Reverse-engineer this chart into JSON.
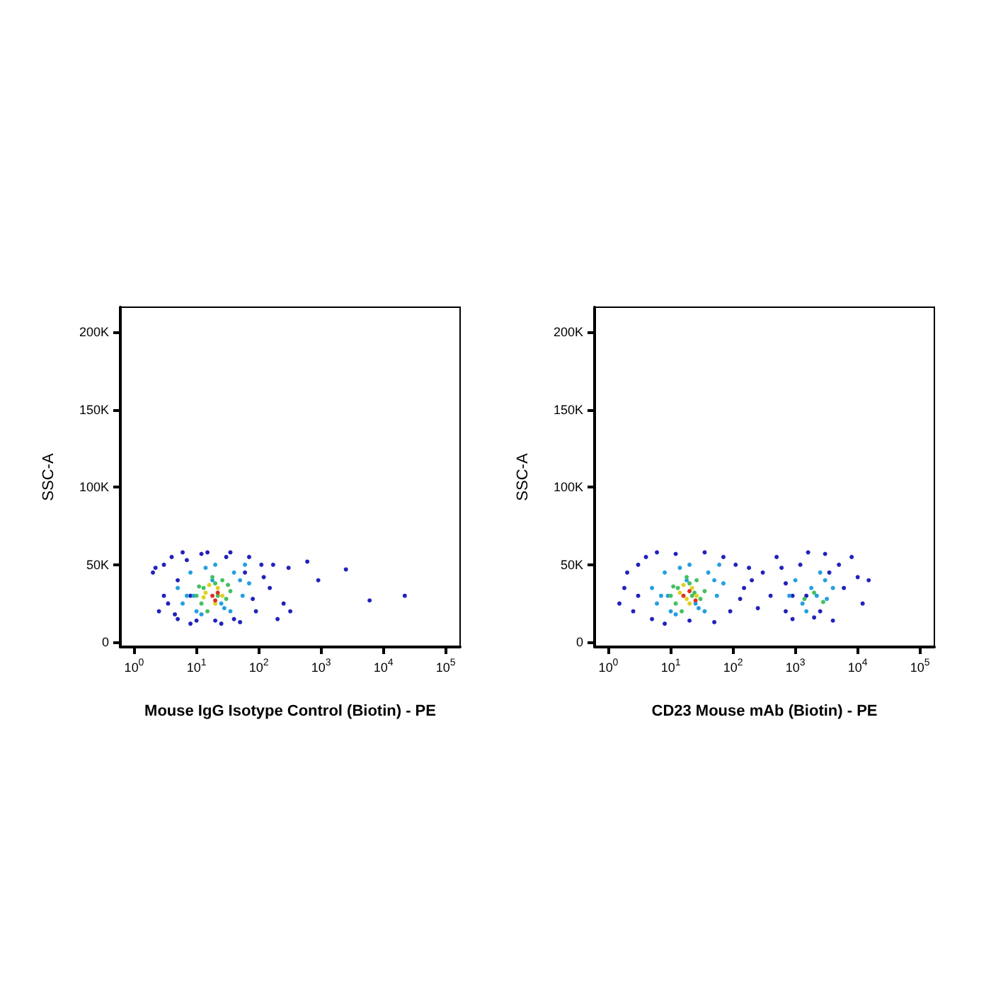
{
  "chart_data": [
    {
      "type": "scatter",
      "xlabel": "Mouse IgG Isotype Control (Biotin) - PE",
      "ylabel": "SSC-A",
      "log": "x",
      "grid": false,
      "marker": "circle",
      "xlim": [
        0.6,
        170000
      ],
      "xticks": [
        {
          "value": 1,
          "label": "10$^{0}$"
        },
        {
          "value": 10,
          "label": "10$^{1}$"
        },
        {
          "value": 100,
          "label": "10$^{2}$"
        },
        {
          "value": 1000,
          "label": "10$^{3}$"
        },
        {
          "value": 10000,
          "label": "10$^{4}$"
        },
        {
          "value": 100000,
          "label": "10$^{5}$"
        }
      ],
      "ylim": [
        -3000,
        216000
      ],
      "yticks": [
        0,
        {
          "value": 50000,
          "label": "50K"
        },
        {
          "value": 100000,
          "label": "100K"
        },
        {
          "value": 150000,
          "label": "150K"
        },
        {
          "value": 200000,
          "label": "200K"
        }
      ],
      "series": [
        {
          "color": "#2222bb",
          "x": [
            2,
            3,
            2.5,
            4,
            5,
            3,
            6,
            8,
            12,
            20,
            35,
            50,
            70,
            90,
            110,
            150,
            60,
            40,
            25,
            15,
            10,
            7,
            5,
            3.5,
            4.5,
            8,
            30,
            80,
            120,
            2.2,
            300,
            600,
            900,
            2500,
            6000,
            22000,
            320,
            250,
            170,
            200
          ],
          "values": [
            45000,
            30000,
            20000,
            55000,
            15000,
            50000,
            58000,
            12000,
            57000,
            14000,
            58000,
            13000,
            55000,
            20000,
            50000,
            35000,
            45000,
            15000,
            12000,
            58000,
            14000,
            53000,
            40000,
            25000,
            18000,
            30000,
            55000,
            28000,
            42000,
            48000,
            48000,
            52000,
            40000,
            47000,
            27000,
            30000,
            20000,
            25000,
            50000,
            15000
          ]
        },
        {
          "color": "#22a0e0",
          "x": [
            5,
            6,
            8,
            10,
            14,
            20,
            28,
            40,
            55,
            70,
            9,
            12,
            18,
            25,
            35,
            50,
            7,
            60
          ],
          "values": [
            35000,
            25000,
            45000,
            20000,
            48000,
            50000,
            22000,
            45000,
            30000,
            38000,
            30000,
            18000,
            40000,
            25000,
            20000,
            40000,
            30000,
            50000
          ]
        },
        {
          "color": "#44c060",
          "x": [
            10,
            13,
            11,
            20,
            32,
            30,
            12,
            18,
            26,
            35,
            15,
            22
          ],
          "values": [
            30000,
            35000,
            36000,
            38000,
            37000,
            28000,
            25000,
            42000,
            40000,
            33000,
            20000,
            30000
          ]
        },
        {
          "color": "#e0d020",
          "x": [
            14,
            13,
            22,
            26,
            16,
            20
          ],
          "values": [
            32000,
            29000,
            35000,
            30000,
            37000,
            25000
          ]
        },
        {
          "color": "#e03020",
          "x": [
            18,
            22,
            20
          ],
          "values": [
            30000,
            32000,
            27000
          ]
        }
      ]
    },
    {
      "type": "scatter",
      "xlabel": "CD23 Mouse mAb (Biotin) - PE",
      "ylabel": "SSC-A",
      "log": "x",
      "grid": false,
      "marker": "circle",
      "xlim": [
        0.6,
        170000
      ],
      "xticks": [
        {
          "value": 1,
          "label": "10$^{0}$"
        },
        {
          "value": 10,
          "label": "10$^{1}$"
        },
        {
          "value": 100,
          "label": "10$^{2}$"
        },
        {
          "value": 1000,
          "label": "10$^{3}$"
        },
        {
          "value": 10000,
          "label": "10$^{4}$"
        },
        {
          "value": 100000,
          "label": "10$^{5}$"
        }
      ],
      "ylim": [
        -3000,
        216000
      ],
      "yticks": [
        0,
        {
          "value": 50000,
          "label": "50K"
        },
        {
          "value": 100000,
          "label": "100K"
        },
        {
          "value": 150000,
          "label": "150K"
        },
        {
          "value": 200000,
          "label": "200K"
        }
      ],
      "series": [
        {
          "color": "#2222bb",
          "x": [
            2,
            3,
            2.5,
            4,
            5,
            3,
            6,
            8,
            12,
            20,
            35,
            50,
            70,
            90,
            110,
            150,
            200,
            250,
            130,
            180,
            1.8,
            1.5,
            300,
            400,
            500,
            700,
            900,
            1200,
            1600,
            2000,
            3000,
            4000,
            5000,
            6000,
            8000,
            10000,
            15000,
            12000,
            700,
            2500,
            1500,
            3500,
            600,
            900
          ],
          "values": [
            45000,
            30000,
            20000,
            55000,
            15000,
            50000,
            58000,
            12000,
            57000,
            14000,
            58000,
            13000,
            55000,
            20000,
            50000,
            35000,
            40000,
            22000,
            28000,
            48000,
            35000,
            25000,
            45000,
            30000,
            55000,
            20000,
            15000,
            50000,
            58000,
            16000,
            57000,
            14000,
            50000,
            35000,
            55000,
            42000,
            40000,
            25000,
            38000,
            20000,
            30000,
            45000,
            48000,
            30000
          ]
        },
        {
          "color": "#22a0e0",
          "x": [
            5,
            6,
            8,
            10,
            14,
            20,
            28,
            40,
            55,
            70,
            9,
            12,
            18,
            25,
            35,
            50,
            7,
            60,
            800,
            1000,
            1300,
            1800,
            2500,
            3200,
            4000,
            1500,
            2200,
            3000
          ],
          "values": [
            35000,
            25000,
            45000,
            20000,
            48000,
            50000,
            22000,
            45000,
            30000,
            38000,
            30000,
            18000,
            40000,
            25000,
            20000,
            40000,
            30000,
            50000,
            30000,
            40000,
            25000,
            35000,
            45000,
            28000,
            35000,
            20000,
            30000,
            40000
          ]
        },
        {
          "color": "#44c060",
          "x": [
            10,
            13,
            11,
            20,
            24,
            30,
            12,
            18,
            26,
            35,
            15,
            22,
            1400,
            2000,
            2800
          ],
          "values": [
            30000,
            35000,
            36000,
            38000,
            32000,
            28000,
            25000,
            42000,
            40000,
            33000,
            20000,
            30000,
            28000,
            32000,
            26000
          ]
        },
        {
          "color": "#e0d020",
          "x": [
            14,
            18,
            22,
            26,
            16,
            20
          ],
          "values": [
            32000,
            28000,
            35000,
            30000,
            37000,
            25000
          ]
        },
        {
          "color": "#e03020",
          "x": [
            16,
            20,
            25
          ],
          "values": [
            30000,
            33000,
            27000
          ]
        }
      ]
    }
  ]
}
